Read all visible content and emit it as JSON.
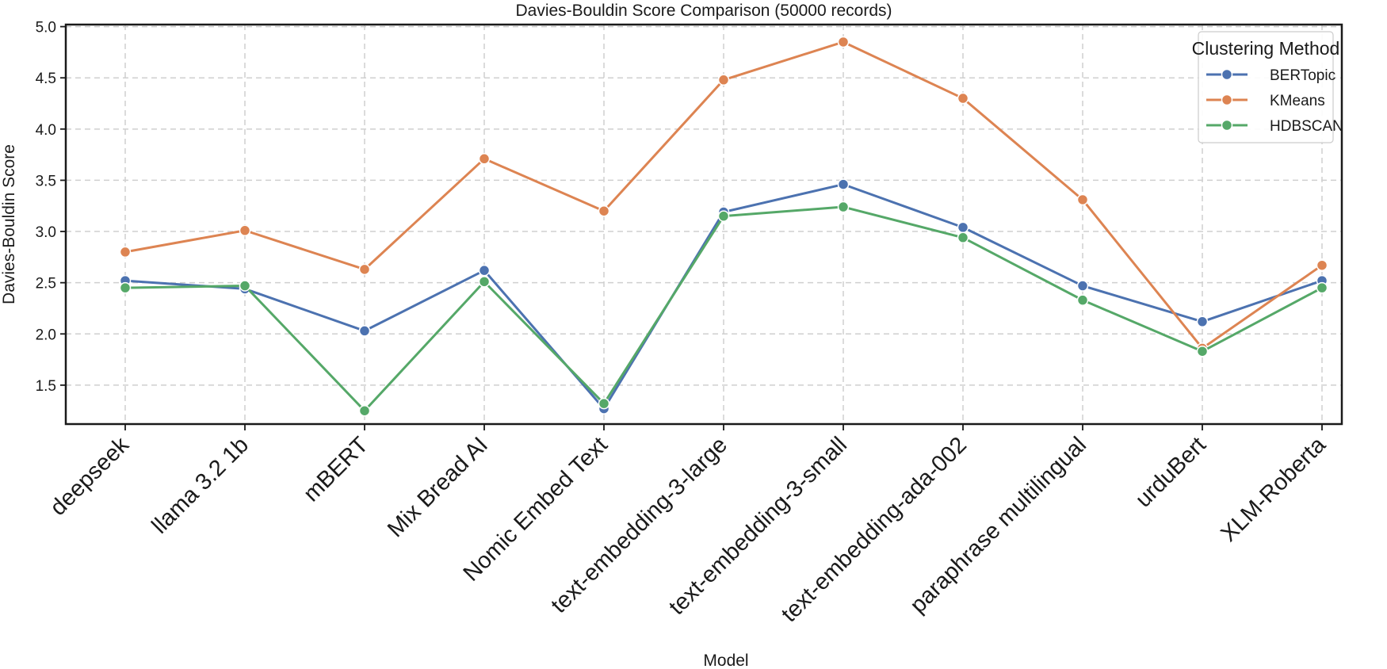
{
  "chart_data": {
    "type": "line",
    "title": "Davies-Bouldin Score Comparison (50000 records)",
    "xlabel": "Model",
    "ylabel": "Davies-Bouldin Score",
    "categories": [
      "deepseek",
      "llama 3.2 1b",
      "mBERT",
      "Mix Bread AI",
      "Nomic Embed Text",
      "text-embedding-3-large",
      "text-embedding-3-small",
      "text-embedding-ada-002",
      "paraphrase multilingual",
      "urduBert",
      "XLM-Roberta"
    ],
    "ylim": [
      1.12,
      5.02
    ],
    "yticks": [
      "1.5",
      "2.0",
      "2.5",
      "3.0",
      "3.5",
      "4.0",
      "4.5",
      "5.0"
    ],
    "grid": true,
    "legend": {
      "title": "Clustering Method",
      "position": "top-right"
    },
    "series": [
      {
        "name": "BERTopic",
        "color": "#4c72b0",
        "values": [
          2.52,
          2.44,
          2.03,
          2.62,
          1.27,
          3.19,
          3.46,
          3.04,
          2.47,
          2.12,
          2.52
        ]
      },
      {
        "name": "KMeans",
        "color": "#dd8452",
        "values": [
          2.8,
          3.01,
          2.63,
          3.71,
          3.2,
          4.48,
          4.85,
          4.3,
          3.31,
          1.86,
          2.67
        ]
      },
      {
        "name": "HDBSCAN",
        "color": "#55a868",
        "values": [
          2.45,
          2.47,
          1.25,
          2.51,
          1.32,
          3.15,
          3.24,
          2.94,
          2.33,
          1.83,
          2.45
        ]
      }
    ]
  }
}
